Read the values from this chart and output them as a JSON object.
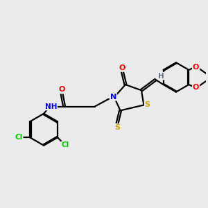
{
  "bg_color": "#ebebeb",
  "atom_colors": {
    "C": "#000000",
    "N": "#0000ff",
    "O": "#ff0000",
    "S": "#ccaa00",
    "Cl": "#00cc00",
    "H": "#607080"
  },
  "bond_color": "#000000",
  "lw": 1.6
}
